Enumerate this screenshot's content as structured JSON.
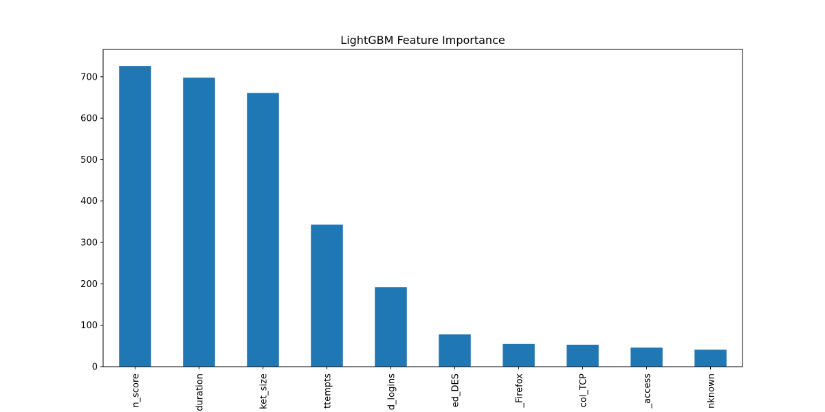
{
  "chart_data": {
    "type": "bar",
    "title": "LightGBM Feature Importance",
    "xlabel": "",
    "ylabel": "",
    "categories": [
      "n_score",
      "duration",
      "ket_size",
      "ttempts",
      "d_logins",
      "ed_DES",
      "_Firefox",
      "col_TCP",
      "_access",
      "nknown"
    ],
    "values": [
      726,
      698,
      661,
      343,
      192,
      78,
      55,
      53,
      46,
      41
    ],
    "ylim": [
      0,
      766
    ],
    "yticks": [
      0,
      100,
      200,
      300,
      400,
      500,
      600,
      700
    ],
    "bar_color": "#1f77b4",
    "grid": false,
    "legend": "none"
  }
}
